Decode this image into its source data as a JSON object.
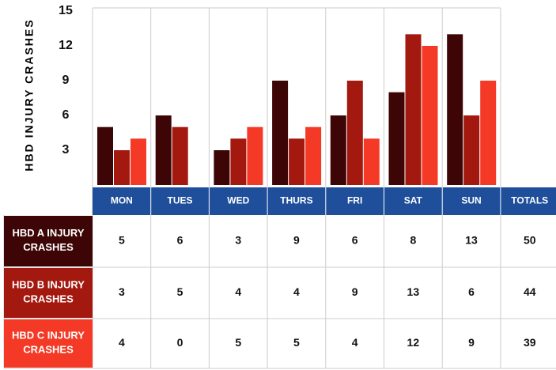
{
  "chart_data": {
    "type": "bar",
    "y_label": "HBD INJURY CRASHES",
    "categories": [
      "MON",
      "TUES",
      "WED",
      "THURS",
      "FRI",
      "SAT",
      "SUN"
    ],
    "totals_label": "TOTALS",
    "series": [
      {
        "name": "HBD A INJURY CRASHES",
        "color": "#3d0505",
        "values": [
          5,
          6,
          3,
          9,
          6,
          8,
          13
        ],
        "total": 50
      },
      {
        "name": "HBD B INJURY CRASHES",
        "color": "#a3180f",
        "values": [
          3,
          5,
          4,
          4,
          9,
          13,
          6
        ],
        "total": 44
      },
      {
        "name": "HBD C INJURY CRASHES",
        "color": "#f43a26",
        "values": [
          4,
          0,
          5,
          5,
          4,
          12,
          9
        ],
        "total": 39
      }
    ],
    "header_color": "#1f4e9a",
    "ylim": [
      0,
      15
    ],
    "yticks": [
      3,
      6,
      9,
      12,
      15
    ]
  }
}
